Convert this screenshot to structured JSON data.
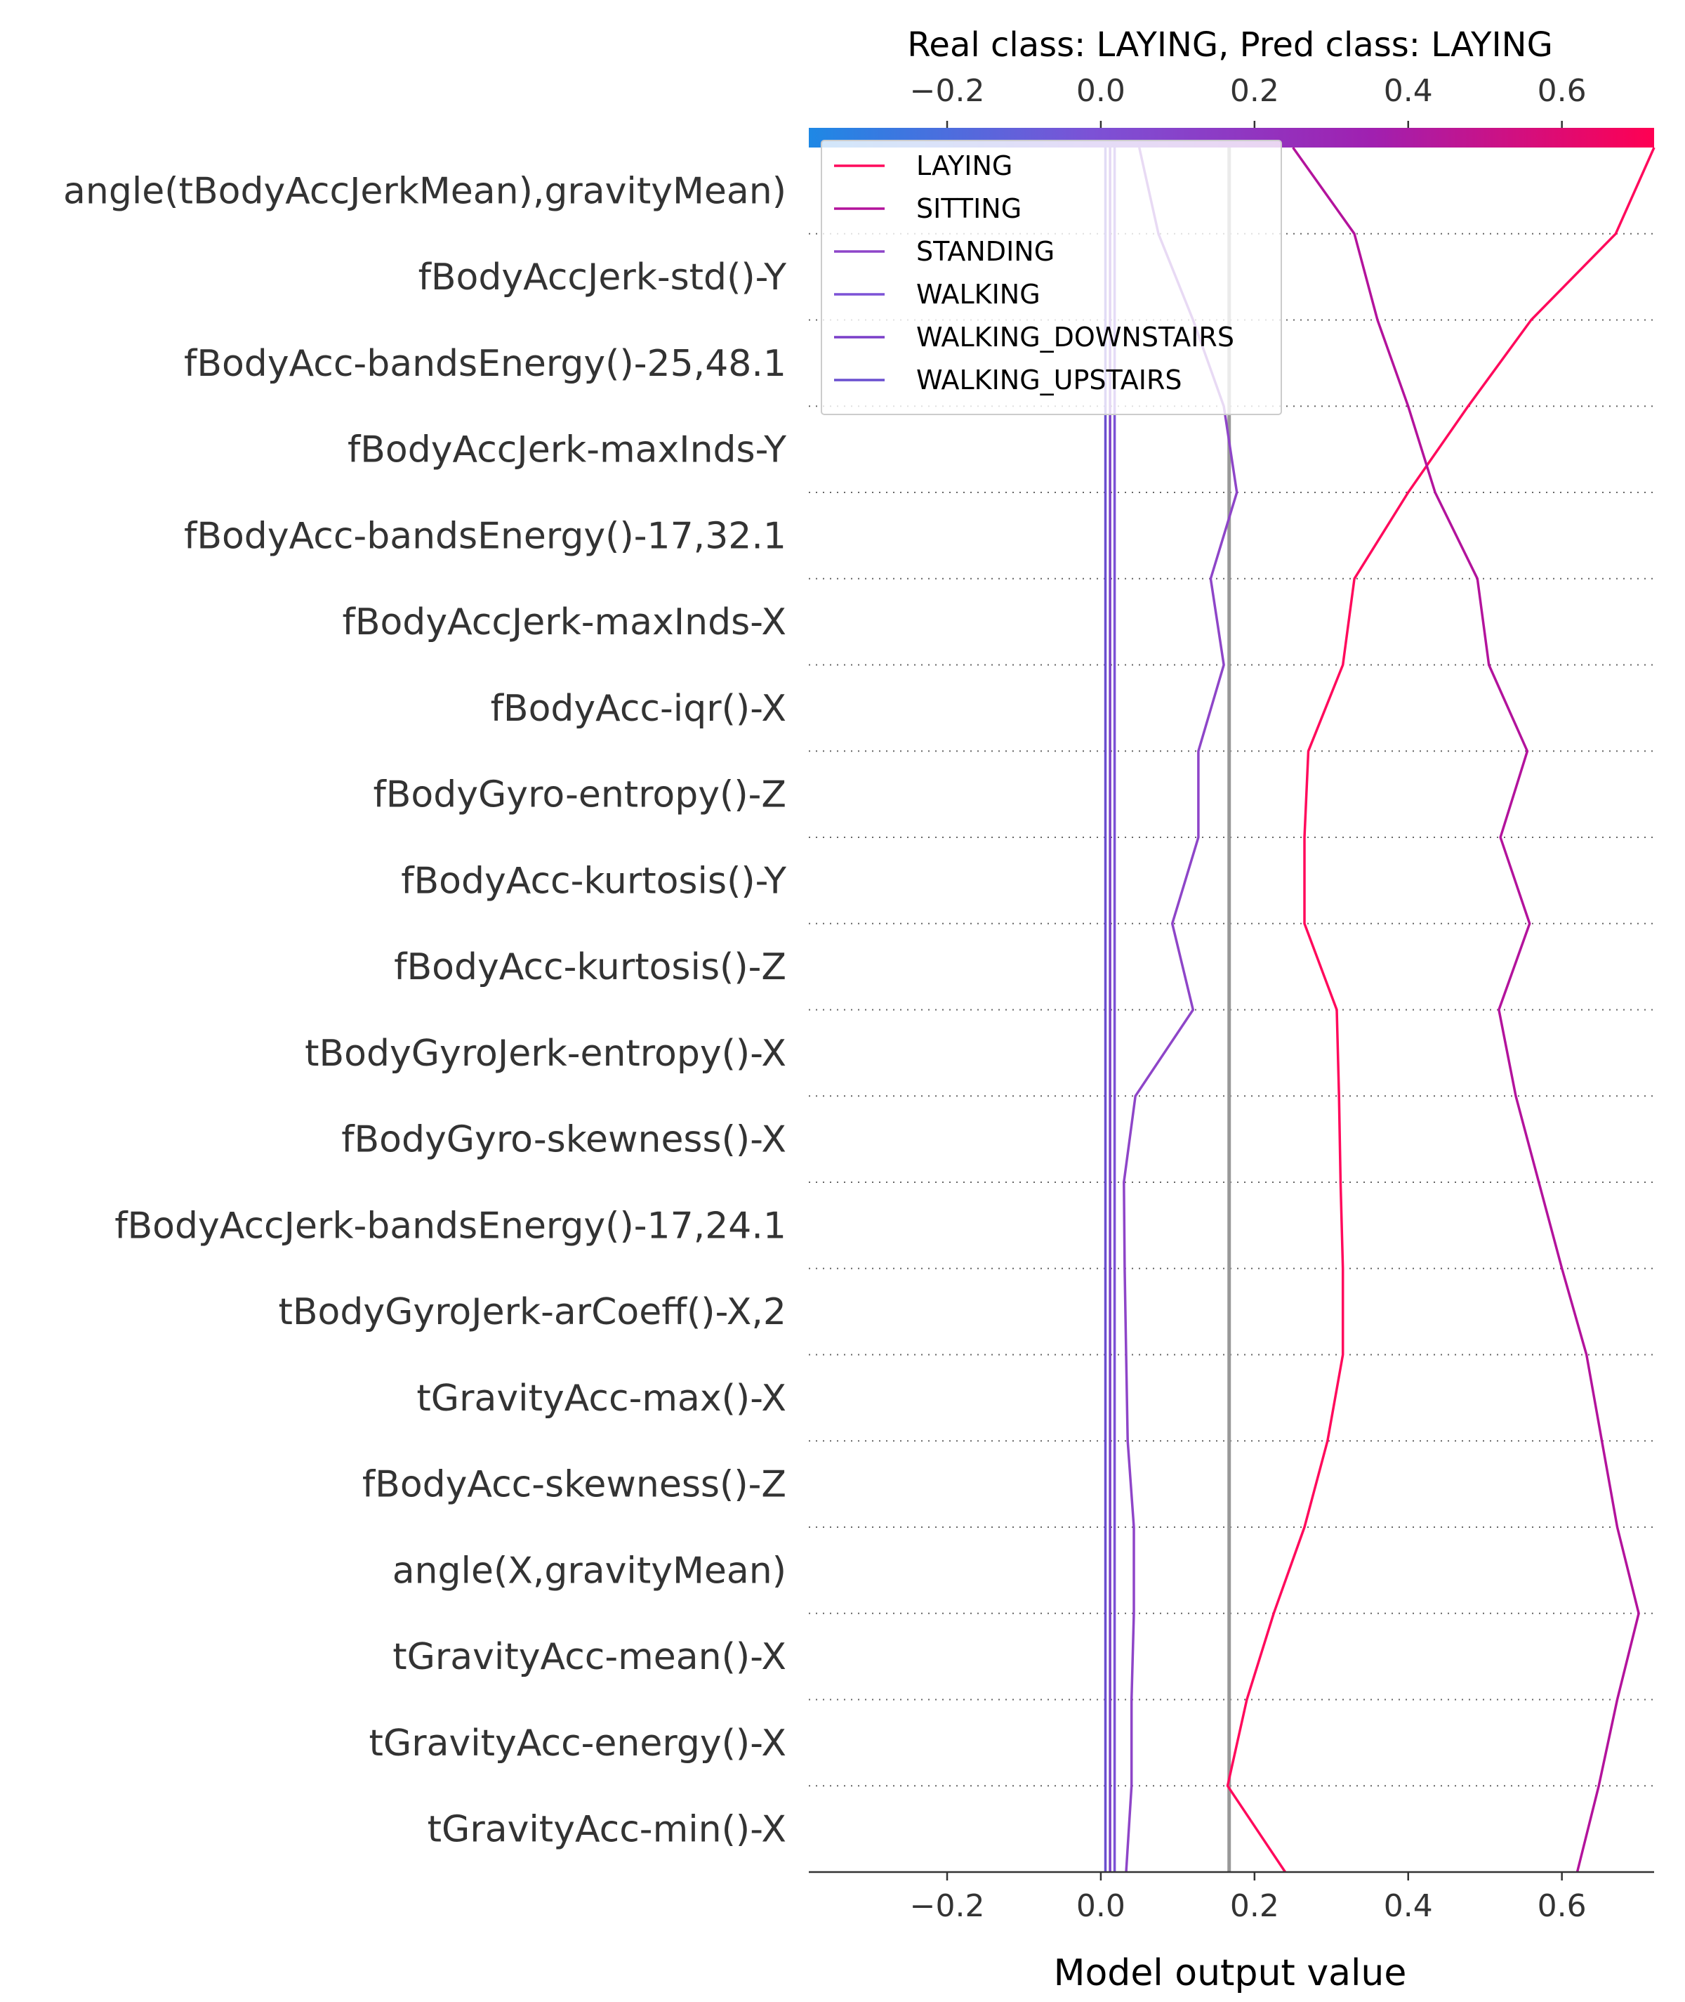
{
  "chart_data": {
    "type": "line",
    "title": "Real class: LAYING, Pred class: LAYING",
    "xlabel": "Model output value",
    "xlim": [
      -0.38,
      0.72
    ],
    "xticks": [
      -0.2,
      0.0,
      0.2,
      0.4,
      0.6
    ],
    "xtick_labels": [
      "−0.2",
      "0.0",
      "0.2",
      "0.4",
      "0.6"
    ],
    "base_value": 0.167,
    "features": [
      "tGravityAcc-min()-X",
      "tGravityAcc-energy()-X",
      "tGravityAcc-mean()-X",
      "angle(X,gravityMean)",
      "fBodyAcc-skewness()-Z",
      "tGravityAcc-max()-X",
      "tBodyGyroJerk-arCoeff()-X,2",
      "fBodyAccJerk-bandsEnergy()-17,24.1",
      "fBodyGyro-skewness()-X",
      "tBodyGyroJerk-entropy()-X",
      "fBodyAcc-kurtosis()-Z",
      "fBodyAcc-kurtosis()-Y",
      "fBodyGyro-entropy()-Z",
      "fBodyAcc-iqr()-X",
      "fBodyAccJerk-maxInds-X",
      "fBodyAcc-bandsEnergy()-17,32.1",
      "fBodyAccJerk-maxInds-Y",
      "fBodyAcc-bandsEnergy()-25,48.1",
      "fBodyAccJerk-std()-Y",
      "angle(tBodyAccJerkMean),gravityMean)"
    ],
    "legend_position": "upper-left",
    "colorbar": {
      "stops": [
        "#1e88e5",
        "#7c52d6",
        "#a020b0",
        "#ff0052"
      ],
      "tick_labels": [
        "−0.2",
        "0.0",
        "0.2",
        "0.4",
        "0.6"
      ]
    },
    "series": [
      {
        "name": "LAYING",
        "color": "#ff0a5c",
        "values": [
          0.24,
          0.165,
          0.19,
          0.225,
          0.265,
          0.295,
          0.315,
          0.315,
          0.312,
          0.31,
          0.307,
          0.265,
          0.265,
          0.27,
          0.315,
          0.33,
          0.4,
          0.478,
          0.56,
          0.67,
          0.72
        ]
      },
      {
        "name": "SITTING",
        "color": "#b3139c",
        "values": [
          0.62,
          0.648,
          0.672,
          0.7,
          0.672,
          0.652,
          0.632,
          0.6,
          0.57,
          0.54,
          0.518,
          0.558,
          0.52,
          0.555,
          0.505,
          0.49,
          0.435,
          0.4,
          0.36,
          0.33,
          0.25
        ]
      },
      {
        "name": "STANDING",
        "color": "#8e45c8",
        "values": [
          0.033,
          0.04,
          0.04,
          0.043,
          0.043,
          0.035,
          0.033,
          0.031,
          0.03,
          0.045,
          0.12,
          0.093,
          0.127,
          0.127,
          0.16,
          0.143,
          0.177,
          0.16,
          0.12,
          0.075,
          0.05
        ]
      },
      {
        "name": "WALKING",
        "color": "#7c52d6",
        "values": [
          0.018,
          0.018,
          0.018,
          0.018,
          0.018,
          0.018,
          0.018,
          0.018,
          0.018,
          0.018,
          0.018,
          0.018,
          0.018,
          0.018,
          0.018,
          0.018,
          0.018,
          0.018,
          0.018,
          0.018,
          0.018
        ]
      },
      {
        "name": "WALKING_DOWNSTAIRS",
        "color": "#7a3fc9",
        "values": [
          0.012,
          0.012,
          0.012,
          0.012,
          0.012,
          0.012,
          0.012,
          0.012,
          0.012,
          0.012,
          0.012,
          0.012,
          0.012,
          0.012,
          0.012,
          0.012,
          0.012,
          0.012,
          0.012,
          0.012,
          0.012
        ]
      },
      {
        "name": "WALKING_UPSTAIRS",
        "color": "#6a4fcf",
        "values": [
          0.006,
          0.006,
          0.006,
          0.006,
          0.006,
          0.006,
          0.006,
          0.006,
          0.006,
          0.006,
          0.006,
          0.006,
          0.006,
          0.006,
          0.006,
          0.006,
          0.006,
          0.006,
          0.006,
          0.006,
          0.006
        ]
      }
    ]
  }
}
